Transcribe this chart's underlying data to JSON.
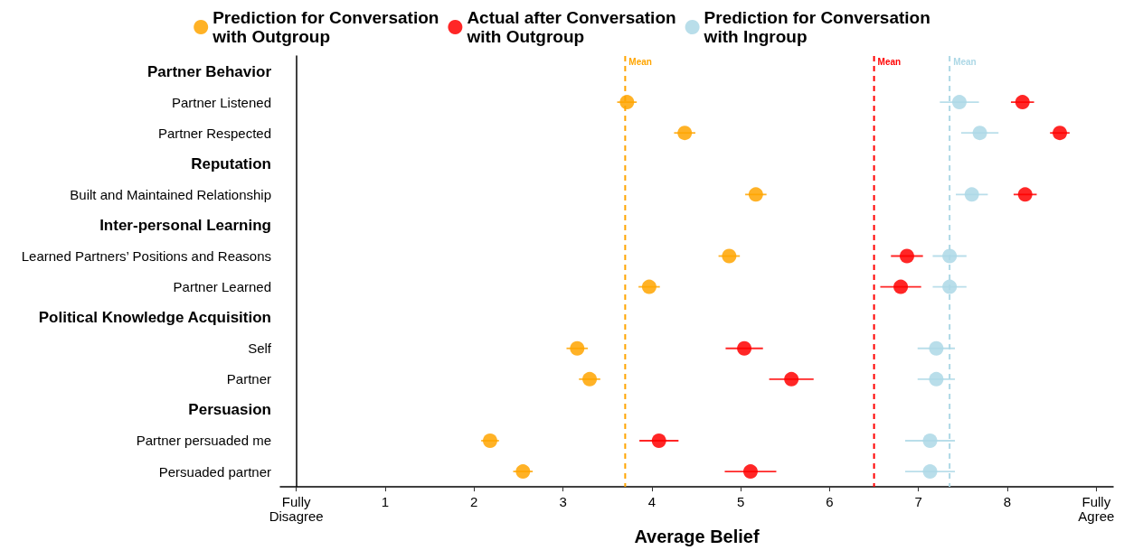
{
  "chart_data": {
    "type": "scatter",
    "orientation": "horizontal",
    "xlabel": "Average Belief",
    "categories": [
      "Partner Behavior",
      "Partner Listened",
      "Partner Respected",
      "Reputation",
      "Built and Maintained Relationship",
      "Inter-personal Learning",
      "Learned Partners’ Positions and Reasons",
      "Partner Learned",
      "Political Knowledge Acquisition",
      "Self",
      "Partner",
      "Persuasion",
      "Partner persuaded me",
      "Persuaded partner"
    ],
    "series": [
      {
        "name": "Prediction for Conversation\nwith Outgroup",
        "color": "#ffa500",
        "values": [
          null,
          3.72,
          4.37,
          null,
          5.17,
          null,
          4.87,
          3.97,
          null,
          3.16,
          3.3,
          null,
          2.18,
          2.55
        ],
        "errors": [
          null,
          0.11,
          0.12,
          null,
          0.12,
          null,
          0.12,
          0.12,
          null,
          0.12,
          0.12,
          null,
          0.1,
          0.11
        ]
      },
      {
        "name": "Actual after Conversation\nwith Outgroup",
        "color": "#ff0000",
        "values": [
          null,
          8.17,
          8.59,
          null,
          8.2,
          null,
          6.87,
          6.8,
          null,
          5.04,
          5.57,
          null,
          4.08,
          5.11
        ],
        "errors": [
          null,
          0.13,
          0.11,
          null,
          0.13,
          null,
          0.18,
          0.23,
          null,
          0.21,
          0.25,
          null,
          0.22,
          0.29
        ]
      },
      {
        "name": "Prediction for Conversation\nwith Ingroup",
        "color": "#add8e6",
        "values": [
          null,
          7.46,
          7.69,
          null,
          7.6,
          null,
          7.35,
          7.35,
          null,
          7.2,
          7.2,
          null,
          7.13,
          7.13
        ],
        "errors": [
          null,
          0.22,
          0.21,
          null,
          0.18,
          null,
          0.19,
          0.19,
          null,
          0.21,
          0.21,
          null,
          0.28,
          0.28
        ]
      }
    ],
    "xlim": [
      -0.18,
      9.19
    ],
    "xticks": [
      {
        "value": 0,
        "label": "Fully\nDisagree"
      },
      1,
      2,
      3,
      4,
      5,
      6,
      7,
      8,
      {
        "value": 9,
        "label": "Fully\nAgree"
      }
    ],
    "ref_lines": [
      {
        "axis": "x",
        "value": 3.7,
        "label": "Mean",
        "color": "#ffa500",
        "line_style": "dashed"
      },
      {
        "axis": "x",
        "value": 6.5,
        "label": "Mean",
        "color": "#ff0000",
        "line_style": "dashed"
      },
      {
        "axis": "x",
        "value": 7.35,
        "label": "Mean",
        "color": "#add8e6",
        "line_style": "dashed"
      }
    ],
    "marker": "circle",
    "grid": false,
    "legend": "top"
  }
}
